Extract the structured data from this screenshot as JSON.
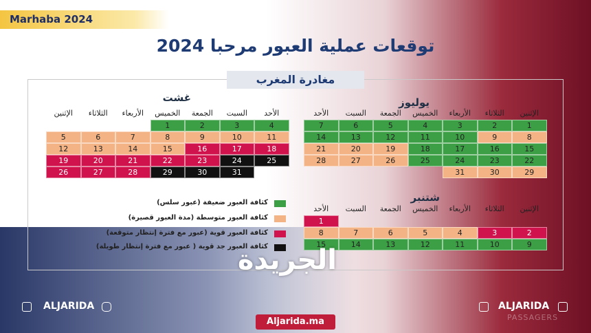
{
  "badge": "Marhaba 2024",
  "title": "توقعات عملية العبور مرحبا 2024",
  "subtitle": "مغادرة المغرب",
  "colors": {
    "g": "#3c9f45",
    "o": "#f3b385",
    "r": "#d0134c",
    "k": "#111111"
  },
  "calendars": [
    {
      "month": "يوليوز",
      "headers": [
        "الأحد",
        "السبت",
        "الجمعة",
        "الخميس",
        "الأربعاء",
        "الثلاثاء",
        "الإثنين"
      ],
      "weeks": [
        [
          7,
          6,
          5,
          4,
          3,
          2,
          1
        ],
        [
          14,
          13,
          12,
          11,
          10,
          9,
          8
        ],
        [
          21,
          20,
          19,
          18,
          17,
          16,
          15
        ],
        [
          28,
          27,
          26,
          25,
          24,
          23,
          22
        ],
        [
          null,
          null,
          null,
          null,
          31,
          30,
          29
        ]
      ],
      "levels": [
        [
          "g",
          "g",
          "g",
          "g",
          "g",
          "g",
          "g"
        ],
        [
          "g",
          "g",
          "g",
          "g",
          "g",
          "o",
          "o"
        ],
        [
          "o",
          "o",
          "o",
          "g",
          "g",
          "g",
          "g"
        ],
        [
          "o",
          "o",
          "o",
          "g",
          "g",
          "g",
          "g"
        ],
        [
          null,
          null,
          null,
          null,
          "o",
          "o",
          "o"
        ]
      ]
    },
    {
      "month": "غشت",
      "headers": [
        "الإثنين",
        "الثلاثاء",
        "الأربعاء",
        "الخميس",
        "الجمعة",
        "السبت",
        "الأحد"
      ],
      "weeks": [
        [
          null,
          null,
          null,
          1,
          2,
          3,
          4
        ],
        [
          5,
          6,
          7,
          8,
          9,
          10,
          11
        ],
        [
          12,
          13,
          14,
          15,
          16,
          17,
          18
        ],
        [
          19,
          20,
          21,
          22,
          23,
          24,
          25
        ],
        [
          26,
          27,
          28,
          29,
          30,
          31,
          null
        ]
      ],
      "levels": [
        [
          null,
          null,
          null,
          "g",
          "g",
          "g",
          "g"
        ],
        [
          "o",
          "o",
          "o",
          "o",
          "o",
          "o",
          "o"
        ],
        [
          "o",
          "o",
          "o",
          "o",
          "r",
          "r",
          "r"
        ],
        [
          "r",
          "r",
          "r",
          "r",
          "r",
          "k",
          "k"
        ],
        [
          "r",
          "r",
          "r",
          "k",
          "k",
          "k",
          null
        ]
      ]
    },
    {
      "month": "شتنبر",
      "headers": [
        "الأحد",
        "السبت",
        "الجمعة",
        "الخميس",
        "الأربعاء",
        "الثلاثاء",
        "الإثنين"
      ],
      "weeks": [
        [
          1,
          null,
          null,
          null,
          null,
          null,
          null
        ],
        [
          8,
          7,
          6,
          5,
          4,
          3,
          2
        ],
        [
          15,
          14,
          13,
          12,
          11,
          10,
          9
        ]
      ],
      "levels": [
        [
          "r",
          null,
          null,
          null,
          null,
          null,
          null
        ],
        [
          "o",
          "o",
          "o",
          "o",
          "o",
          "r",
          "r"
        ],
        [
          "g",
          "g",
          "g",
          "g",
          "g",
          "g",
          "g"
        ]
      ]
    }
  ],
  "legend": [
    {
      "label": "كثافة العبور ضعيفة (عبور سلس)",
      "level": "g"
    },
    {
      "label": "كثافة العبور متوسطة (مدة العبور قصيرة)",
      "level": "o"
    },
    {
      "label": "كثافة العبور قوية (عبور مع فترة إنتظار متوقعة)",
      "level": "r"
    },
    {
      "label": "كثافة العبور جد قوية ( عبور مع فترة إنتظار طويلة)",
      "level": "k"
    }
  ],
  "footer": {
    "left": "ALJARIDA",
    "right": "ALJARIDA",
    "logo": "الجريدة",
    "website": "Aljarida.ma",
    "watermark": "PASSAGERS"
  }
}
